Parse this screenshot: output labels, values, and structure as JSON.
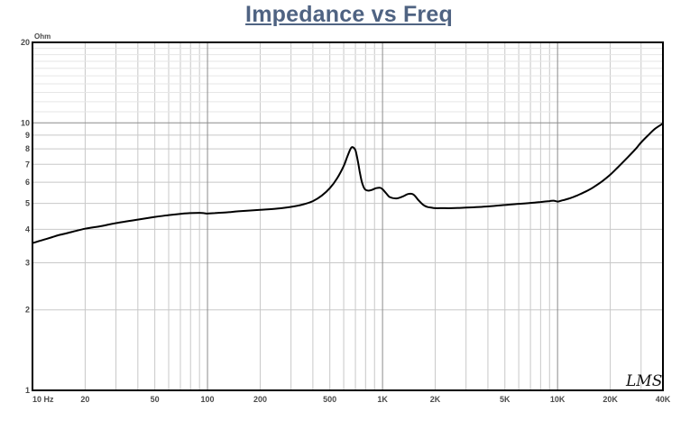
{
  "chart_data": {
    "type": "line",
    "title": "Impedance vs Freq",
    "xlabel": "",
    "ylabel": "",
    "y_unit": "Ohm",
    "x_scale": "log",
    "y_scale": "log",
    "xlim": [
      10,
      40000
    ],
    "ylim": [
      1,
      20
    ],
    "grid": true,
    "x_ticks": [
      {
        "value": 10,
        "label": "10 Hz"
      },
      {
        "value": 20,
        "label": "20"
      },
      {
        "value": 50,
        "label": "50"
      },
      {
        "value": 100,
        "label": "100"
      },
      {
        "value": 200,
        "label": "200"
      },
      {
        "value": 500,
        "label": "500"
      },
      {
        "value": 1000,
        "label": "1K"
      },
      {
        "value": 2000,
        "label": "2K"
      },
      {
        "value": 5000,
        "label": "5K"
      },
      {
        "value": 10000,
        "label": "10K"
      },
      {
        "value": 20000,
        "label": "20K"
      },
      {
        "value": 40000,
        "label": "40K"
      }
    ],
    "y_ticks": [
      {
        "value": 1,
        "label": "1"
      },
      {
        "value": 2,
        "label": "2"
      },
      {
        "value": 3,
        "label": "3"
      },
      {
        "value": 4,
        "label": "4"
      },
      {
        "value": 5,
        "label": "5"
      },
      {
        "value": 6,
        "label": "6"
      },
      {
        "value": 7,
        "label": "7"
      },
      {
        "value": 8,
        "label": "8"
      },
      {
        "value": 9,
        "label": "9"
      },
      {
        "value": 10,
        "label": "10"
      },
      {
        "value": 20,
        "label": "20"
      }
    ],
    "series": [
      {
        "color": "#000000",
        "x": [
          10,
          11,
          12,
          13,
          14,
          15,
          17,
          20,
          25,
          30,
          40,
          50,
          60,
          70,
          80,
          90,
          95,
          100,
          110,
          130,
          150,
          200,
          250,
          300,
          350,
          400,
          450,
          500,
          550,
          600,
          630,
          660,
          680,
          700,
          720,
          740,
          760,
          780,
          800,
          830,
          870,
          920,
          970,
          1000,
          1050,
          1100,
          1200,
          1300,
          1400,
          1500,
          1600,
          1700,
          1800,
          1900,
          2000,
          2200,
          2500,
          3000,
          4000,
          5000,
          6000,
          7000,
          8000,
          9000,
          9500,
          10000,
          10500,
          11000,
          12000,
          13000,
          14000,
          15000,
          16000,
          18000,
          20000,
          22000,
          25000,
          28000,
          30000,
          33000,
          36000,
          40000
        ],
        "y": [
          3.55,
          3.62,
          3.68,
          3.74,
          3.8,
          3.84,
          3.92,
          4.02,
          4.12,
          4.22,
          4.35,
          4.45,
          4.52,
          4.57,
          4.6,
          4.61,
          4.6,
          4.58,
          4.6,
          4.63,
          4.67,
          4.73,
          4.78,
          4.85,
          4.95,
          5.1,
          5.35,
          5.7,
          6.2,
          6.9,
          7.5,
          8.05,
          8.1,
          7.9,
          7.3,
          6.6,
          6.05,
          5.75,
          5.62,
          5.58,
          5.62,
          5.7,
          5.72,
          5.65,
          5.45,
          5.28,
          5.22,
          5.3,
          5.42,
          5.4,
          5.15,
          4.95,
          4.85,
          4.82,
          4.8,
          4.8,
          4.8,
          4.82,
          4.87,
          4.93,
          4.98,
          5.02,
          5.06,
          5.1,
          5.12,
          5.08,
          5.12,
          5.16,
          5.25,
          5.36,
          5.48,
          5.6,
          5.74,
          6.05,
          6.4,
          6.8,
          7.4,
          8.0,
          8.45,
          9.0,
          9.5,
          9.95
        ]
      }
    ]
  },
  "watermark": "LMS"
}
